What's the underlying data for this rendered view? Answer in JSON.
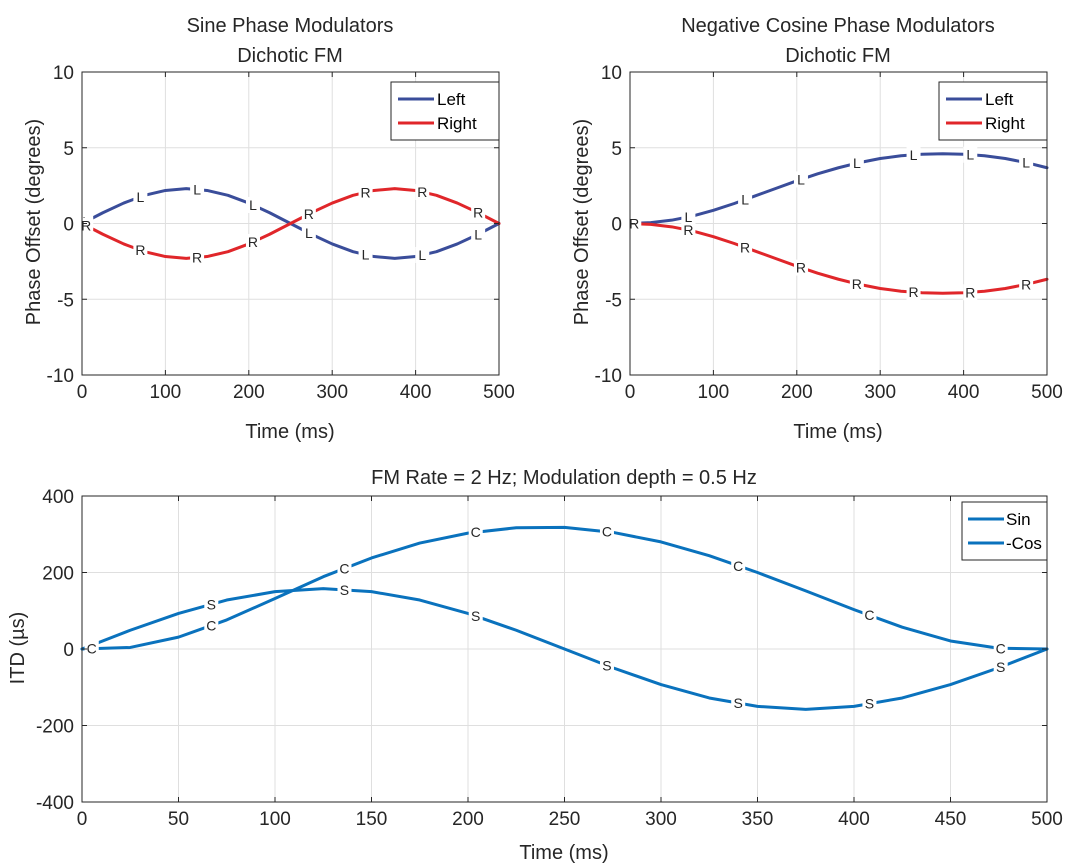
{
  "chart_data": [
    {
      "type": "line",
      "title": [
        "Sine Phase Modulators",
        "Dichotic FM"
      ],
      "xlabel": "Time (ms)",
      "ylabel": "Phase Offset (degrees)",
      "xlim": [
        0,
        500
      ],
      "ylim": [
        -10,
        10
      ],
      "xticks": [
        0,
        100,
        200,
        300,
        400,
        500
      ],
      "yticks": [
        -10,
        -5,
        0,
        5,
        10
      ],
      "grid": true,
      "legend": "top-right",
      "series": [
        {
          "name": "Left",
          "marker": "L",
          "color": "#3a4d9a",
          "x": [
            0,
            25,
            50,
            75,
            100,
            125,
            150,
            175,
            200,
            225,
            250,
            275,
            300,
            325,
            350,
            375,
            400,
            425,
            450,
            475,
            500
          ],
          "y": [
            0,
            0.71,
            1.35,
            1.86,
            2.18,
            2.3,
            2.18,
            1.86,
            1.35,
            0.71,
            0,
            -0.71,
            -1.35,
            -1.86,
            -2.18,
            -2.3,
            -2.18,
            -1.86,
            -1.35,
            -0.71,
            0
          ],
          "marker_x": [
            5,
            70,
            138,
            205,
            272,
            340,
            408,
            475
          ]
        },
        {
          "name": "Right",
          "marker": "R",
          "color": "#e0262a",
          "x": [
            0,
            25,
            50,
            75,
            100,
            125,
            150,
            175,
            200,
            225,
            250,
            275,
            300,
            325,
            350,
            375,
            400,
            425,
            450,
            475,
            500
          ],
          "y": [
            0,
            -0.71,
            -1.35,
            -1.86,
            -2.18,
            -2.3,
            -2.18,
            -1.86,
            -1.35,
            -0.71,
            0,
            0.71,
            1.35,
            1.86,
            2.18,
            2.3,
            2.18,
            1.86,
            1.35,
            0.71,
            0
          ],
          "marker_x": [
            5,
            70,
            138,
            205,
            272,
            340,
            408,
            475
          ]
        }
      ]
    },
    {
      "type": "line",
      "title": [
        "Negative Cosine Phase Modulators",
        "Dichotic FM"
      ],
      "xlabel": "Time (ms)",
      "ylabel": "Phase Offset (degrees)",
      "xlim": [
        0,
        500
      ],
      "ylim": [
        -10,
        10
      ],
      "xticks": [
        0,
        100,
        200,
        300,
        400,
        500
      ],
      "yticks": [
        -10,
        -5,
        0,
        5,
        10
      ],
      "grid": true,
      "legend": "top-right",
      "series": [
        {
          "name": "Left",
          "marker": "L",
          "color": "#3a4d9a",
          "x": [
            0,
            25,
            50,
            75,
            100,
            125,
            150,
            175,
            200,
            225,
            250,
            275,
            300,
            325,
            350,
            375,
            400,
            425,
            450,
            475,
            500
          ],
          "y": [
            0,
            0.06,
            0.22,
            0.49,
            0.87,
            1.32,
            1.82,
            2.32,
            2.82,
            3.28,
            3.68,
            4.02,
            4.29,
            4.47,
            4.57,
            4.6,
            4.57,
            4.47,
            4.29,
            4.02,
            3.68
          ],
          "plotted_x_offset": 0,
          "marker_x": [
            5,
            70,
            138,
            205,
            272,
            340,
            408,
            475
          ]
        },
        {
          "name": "Right",
          "marker": "R",
          "color": "#e0262a",
          "x": [
            0,
            25,
            50,
            75,
            100,
            125,
            150,
            175,
            200,
            225,
            250,
            275,
            300,
            325,
            350,
            375,
            400,
            425,
            450,
            475,
            500
          ],
          "y": [
            0,
            -0.06,
            -0.22,
            -0.49,
            -0.87,
            -1.32,
            -1.82,
            -2.32,
            -2.82,
            -3.28,
            -3.68,
            -4.02,
            -4.29,
            -4.47,
            -4.57,
            -4.6,
            -4.57,
            -4.47,
            -4.29,
            -4.02,
            -3.68
          ],
          "marker_x": [
            5,
            70,
            138,
            205,
            272,
            340,
            408,
            475
          ]
        }
      ]
    },
    {
      "type": "line",
      "title": "FM Rate = 2 Hz; Modulation depth = 0.5 Hz",
      "xlabel": "Time (ms)",
      "ylabel": "ITD (µs)",
      "xlim": [
        0,
        500
      ],
      "ylim": [
        -400,
        400
      ],
      "xticks": [
        0,
        50,
        100,
        150,
        200,
        250,
        300,
        350,
        400,
        450,
        500
      ],
      "yticks": [
        -400,
        -200,
        0,
        200,
        400
      ],
      "grid": true,
      "legend": "top-right",
      "series": [
        {
          "name": "Sin",
          "marker": "S",
          "color": "#0a72bd",
          "x": [
            0,
            25,
            50,
            75,
            100,
            125,
            150,
            175,
            200,
            225,
            250,
            275,
            300,
            325,
            350,
            375,
            400,
            425,
            450,
            475,
            500
          ],
          "y": [
            0,
            49,
            93,
            128,
            150,
            158,
            150,
            128,
            93,
            49,
            0,
            -49,
            -93,
            -128,
            -150,
            -158,
            -150,
            -128,
            -93,
            -49,
            0
          ],
          "marker_x": [
            5,
            67,
            136,
            204,
            272,
            340,
            408,
            476
          ]
        },
        {
          "name": "-Cos",
          "marker": "C",
          "color": "#0a72bd",
          "x": [
            0,
            25,
            50,
            75,
            100,
            125,
            150,
            175,
            200,
            225,
            250,
            275,
            300,
            325,
            350,
            375,
            400,
            425,
            450,
            475,
            500
          ],
          "y": [
            0,
            4,
            31,
            76,
            132,
            189,
            238,
            277,
            303,
            317,
            318,
            305,
            280,
            244,
            200,
            152,
            103,
            57,
            21,
            2,
            0
          ],
          "marker_x": [
            5,
            67,
            136,
            204,
            272,
            340,
            408,
            476
          ]
        }
      ]
    }
  ]
}
